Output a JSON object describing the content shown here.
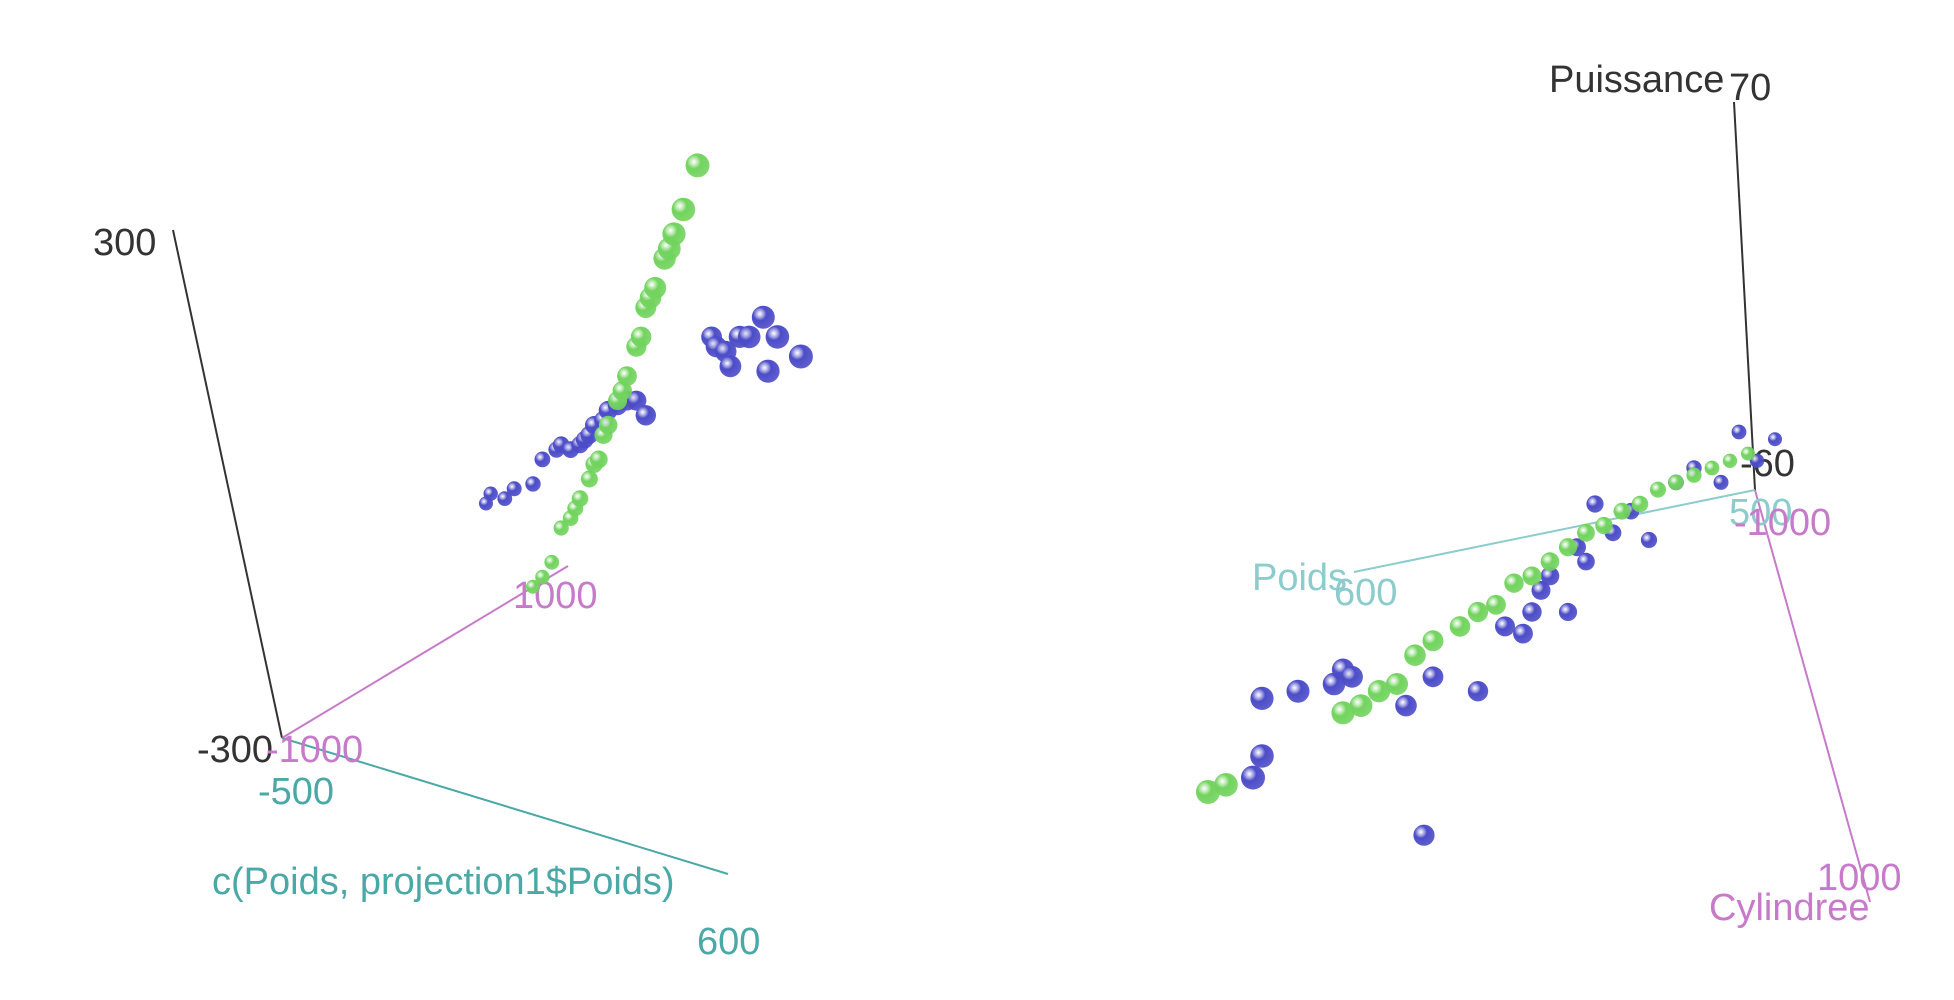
{
  "chart_data": [
    {
      "type": "scatter",
      "axes": {
        "x": {
          "label": "c(Poids, projection1$Poids)",
          "ticks": [
            "-500",
            "600"
          ],
          "color": "#4aa8a6"
        },
        "y": {
          "label": "",
          "ticks": [
            "-1000",
            "1000"
          ],
          "color": "#c77ac9"
        },
        "z": {
          "label": "",
          "ticks": [
            "-300",
            "300"
          ],
          "color": "#333333"
        }
      },
      "series": [
        {
          "color": "#4c4cc8",
          "points": [
            [
              -2.0,
              0.5
            ],
            [
              -1.9,
              0.7
            ],
            [
              -1.6,
              0.6
            ],
            [
              -1.4,
              0.8
            ],
            [
              -1.0,
              0.9
            ],
            [
              -0.8,
              1.4
            ],
            [
              -0.5,
              1.6
            ],
            [
              -0.4,
              1.7
            ],
            [
              -0.2,
              1.6
            ],
            [
              0.0,
              1.7
            ],
            [
              0.1,
              1.8
            ],
            [
              0.2,
              1.9
            ],
            [
              0.3,
              2.1
            ],
            [
              0.5,
              2.2
            ],
            [
              0.6,
              2.4
            ],
            [
              0.8,
              2.5
            ],
            [
              1.0,
              2.6
            ],
            [
              1.2,
              2.6
            ],
            [
              1.4,
              2.3
            ],
            [
              2.8,
              3.9
            ],
            [
              2.9,
              3.7
            ],
            [
              3.1,
              3.6
            ],
            [
              3.2,
              3.3
            ],
            [
              3.4,
              3.9
            ],
            [
              3.6,
              3.9
            ],
            [
              3.9,
              4.3
            ],
            [
              4.0,
              3.2
            ],
            [
              4.2,
              3.9
            ],
            [
              4.7,
              3.5
            ]
          ]
        },
        {
          "color": "#72d35e",
          "points": [
            [
              -1.0,
              -1.2
            ],
            [
              -0.8,
              -1.0
            ],
            [
              -0.6,
              -0.7
            ],
            [
              -0.4,
              0.0
            ],
            [
              -0.2,
              0.2
            ],
            [
              -0.1,
              0.4
            ],
            [
              0.0,
              0.6
            ],
            [
              0.2,
              1.0
            ],
            [
              0.3,
              1.3
            ],
            [
              0.4,
              1.4
            ],
            [
              0.5,
              1.9
            ],
            [
              0.6,
              2.1
            ],
            [
              0.8,
              2.6
            ],
            [
              0.9,
              2.8
            ],
            [
              1.0,
              3.1
            ],
            [
              1.2,
              3.7
            ],
            [
              1.3,
              3.9
            ],
            [
              1.4,
              4.5
            ],
            [
              1.5,
              4.7
            ],
            [
              1.6,
              4.9
            ],
            [
              1.8,
              5.5
            ],
            [
              1.9,
              5.7
            ],
            [
              2.0,
              6.0
            ],
            [
              2.2,
              6.5
            ],
            [
              2.5,
              7.4
            ]
          ]
        }
      ]
    },
    {
      "type": "scatter",
      "axes": {
        "x": {
          "label": "Poids",
          "ticks": [
            "500",
            "600"
          ],
          "color": "#8ccccc"
        },
        "y": {
          "label": "Cylindree",
          "ticks": [
            "-1000",
            "1000"
          ],
          "color": "#c77ac9"
        },
        "z": {
          "label": "Puissance",
          "ticks": [
            "-60",
            "70"
          ],
          "color": "#333333"
        }
      },
      "series": [
        {
          "color": "#4c4cc8",
          "points": [
            [
              -2.3,
              -0.8
            ],
            [
              -2.2,
              -0.5
            ],
            [
              -2.2,
              0.3
            ],
            [
              -1.8,
              0.4
            ],
            [
              -1.4,
              0.5
            ],
            [
              -1.3,
              0.7
            ],
            [
              -1.2,
              0.6
            ],
            [
              -0.6,
              0.2
            ],
            [
              -0.4,
              -1.6
            ],
            [
              -0.3,
              0.6
            ],
            [
              0.2,
              0.4
            ],
            [
              0.5,
              1.3
            ],
            [
              0.7,
              1.2
            ],
            [
              0.8,
              1.5
            ],
            [
              0.9,
              1.8
            ],
            [
              1.0,
              2.0
            ],
            [
              1.2,
              1.5
            ],
            [
              1.3,
              2.4
            ],
            [
              1.4,
              2.2
            ],
            [
              1.5,
              3.0
            ],
            [
              1.7,
              2.6
            ],
            [
              1.9,
              2.9
            ],
            [
              2.1,
              2.5
            ],
            [
              2.4,
              3.3
            ],
            [
              2.6,
              3.5
            ],
            [
              2.9,
              3.3
            ],
            [
              3.1,
              4.0
            ],
            [
              3.3,
              3.6
            ],
            [
              3.5,
              3.9
            ]
          ]
        },
        {
          "color": "#72d35e",
          "points": [
            [
              -2.8,
              -1.0
            ],
            [
              -2.6,
              -0.9
            ],
            [
              -1.3,
              0.1
            ],
            [
              -1.1,
              0.2
            ],
            [
              -0.9,
              0.4
            ],
            [
              -0.7,
              0.5
            ],
            [
              -0.5,
              0.9
            ],
            [
              -0.3,
              1.1
            ],
            [
              0.0,
              1.3
            ],
            [
              0.2,
              1.5
            ],
            [
              0.4,
              1.6
            ],
            [
              0.6,
              1.9
            ],
            [
              0.8,
              2.0
            ],
            [
              1.0,
              2.2
            ],
            [
              1.2,
              2.4
            ],
            [
              1.4,
              2.6
            ],
            [
              1.6,
              2.7
            ],
            [
              1.8,
              2.9
            ],
            [
              2.0,
              3.0
            ],
            [
              2.2,
              3.2
            ],
            [
              2.4,
              3.3
            ],
            [
              2.6,
              3.4
            ],
            [
              2.8,
              3.5
            ],
            [
              3.0,
              3.6
            ],
            [
              3.2,
              3.7
            ]
          ]
        }
      ]
    }
  ]
}
